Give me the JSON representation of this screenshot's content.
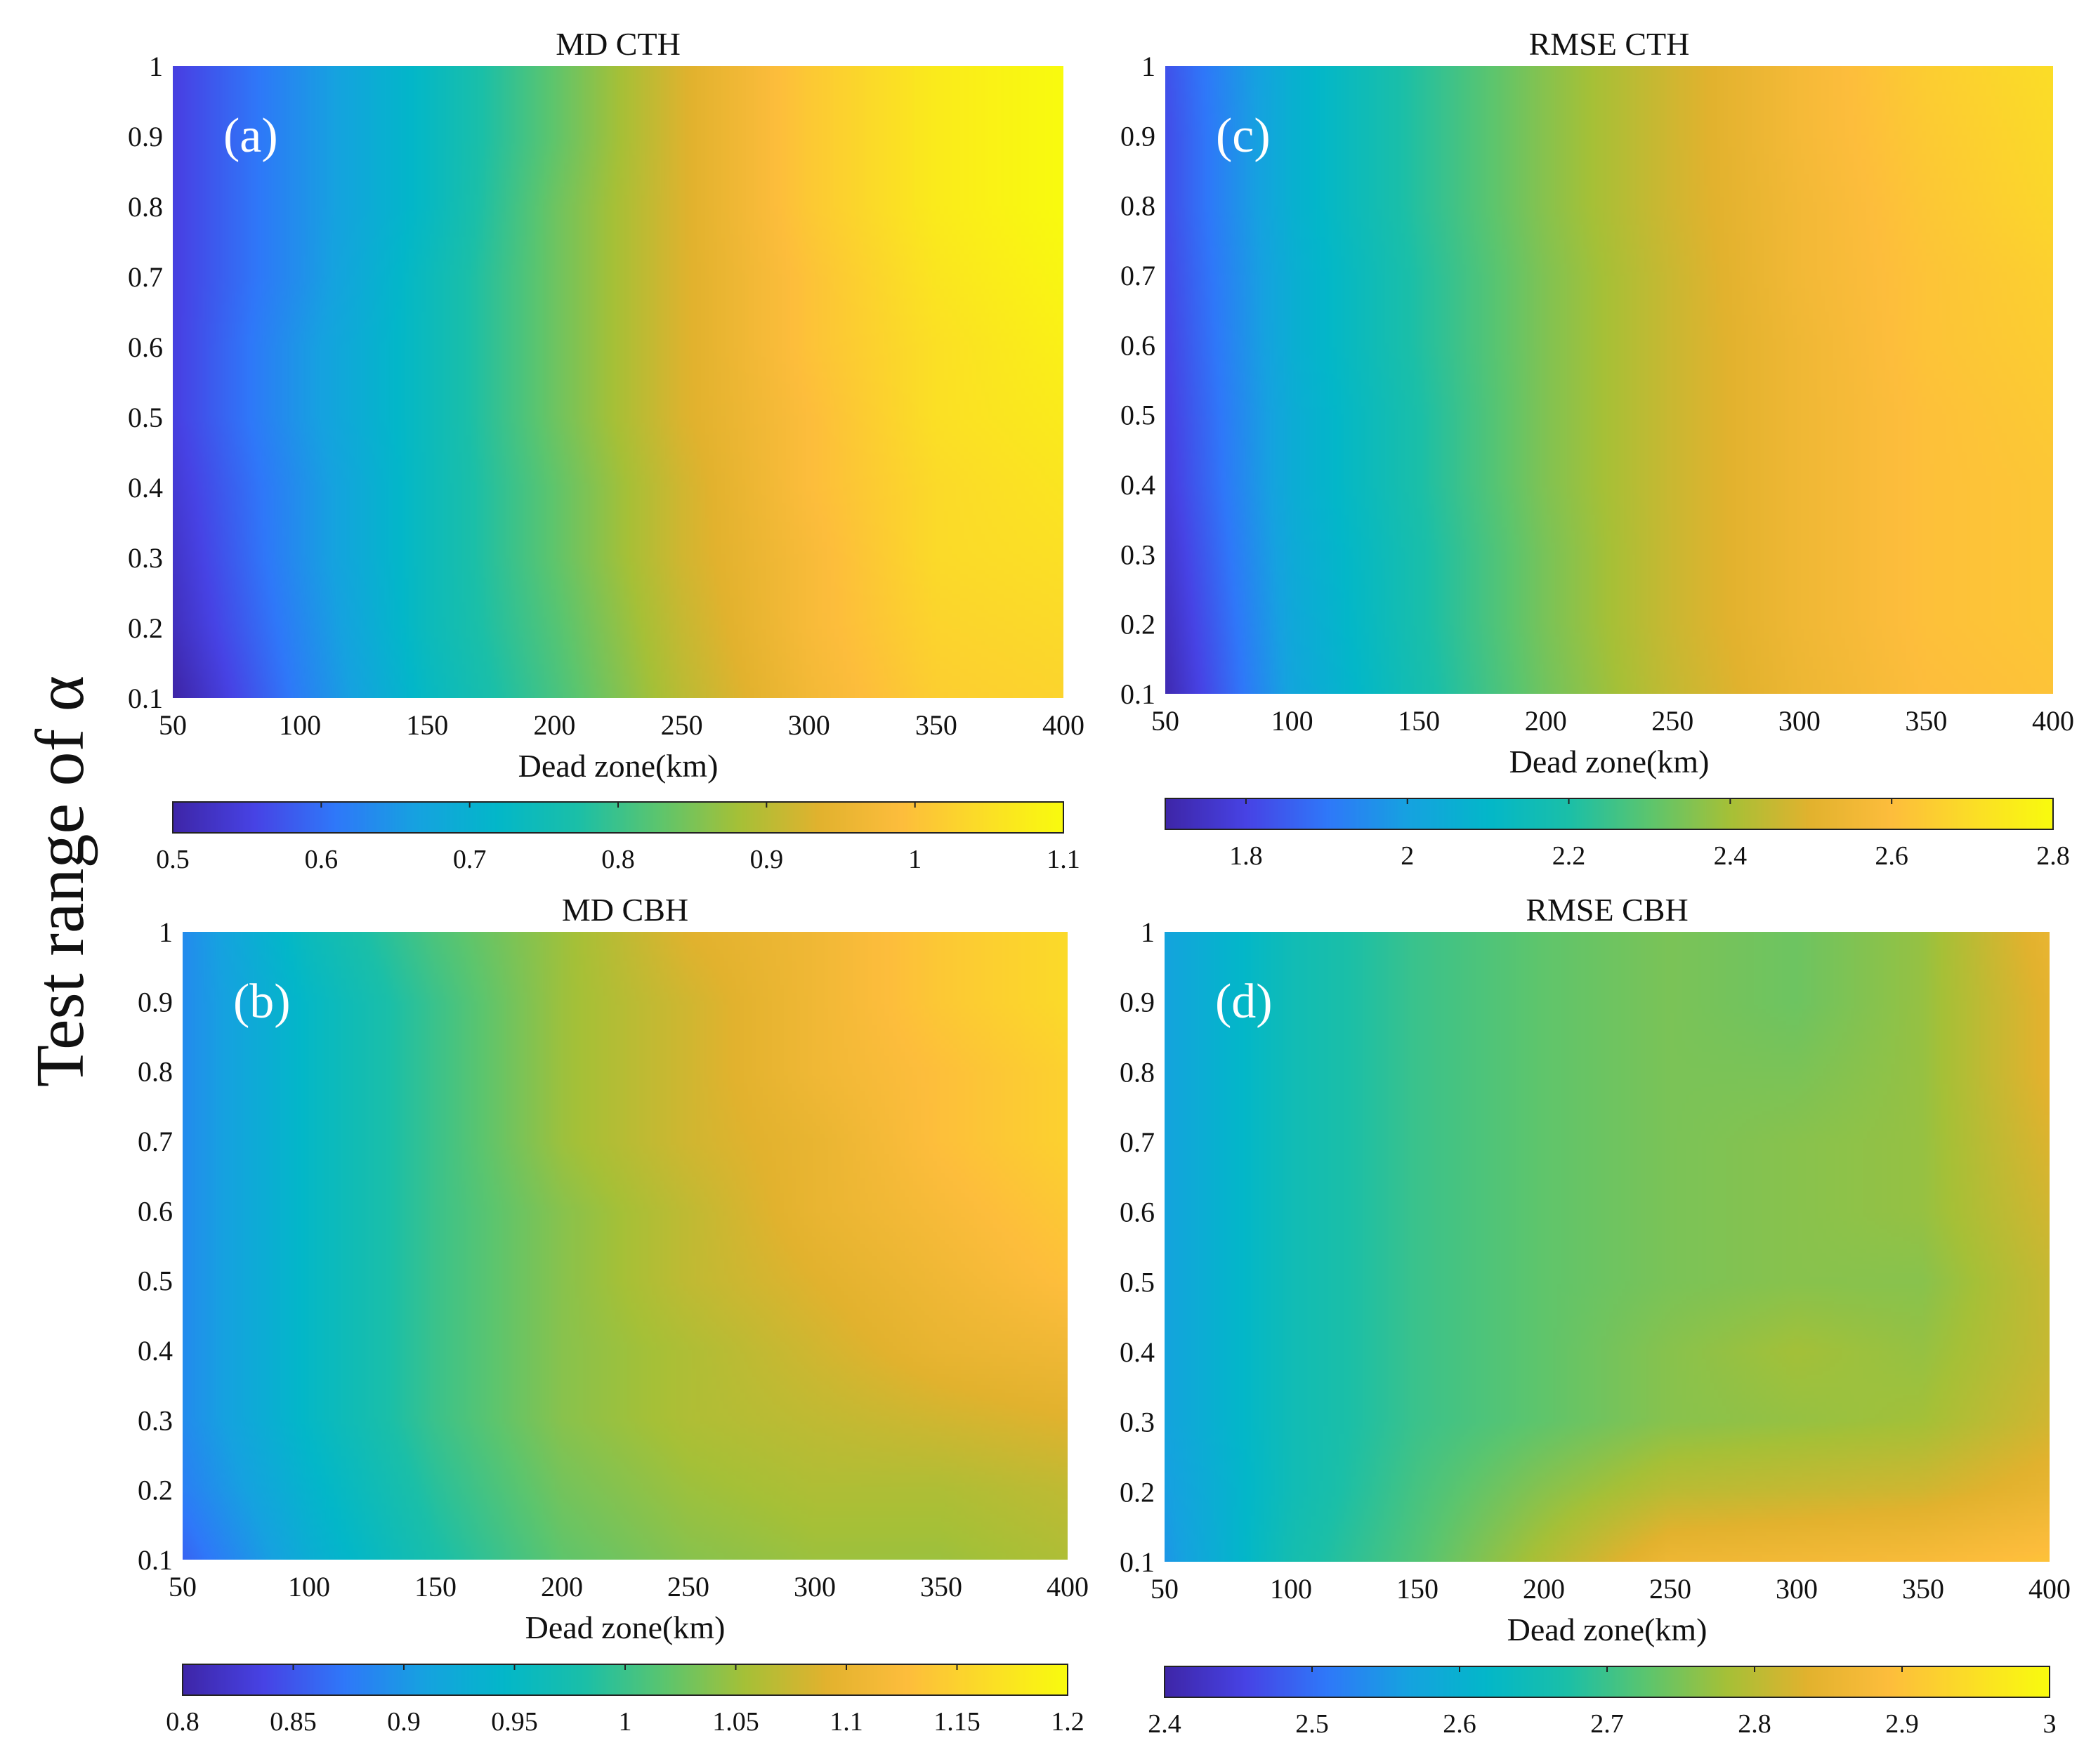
{
  "figure": {
    "y_axis_label": "Test range of α"
  },
  "colormap": [
    "#3e26a8",
    "#4743e5",
    "#2f78f9",
    "#16a2e0",
    "#03b7c9",
    "#1bbfa8",
    "#5cc56e",
    "#a6c037",
    "#e2b22e",
    "#fdbd3c",
    "#fbdd27",
    "#f9fb0e"
  ],
  "chart_data": [
    {
      "id": "a",
      "panel_label": "(a)",
      "type": "heatmap",
      "title": "MD CTH",
      "xlabel": "Dead zone(km)",
      "ylabel": "Test range of α",
      "x": [
        50,
        100,
        150,
        200,
        250,
        300,
        350,
        400
      ],
      "y": [
        0.1,
        0.2,
        0.3,
        0.4,
        0.5,
        0.6,
        0.7,
        0.8,
        0.9,
        1
      ],
      "x_ticks": [
        "50",
        "100",
        "150",
        "200",
        "250",
        "300",
        "350",
        "400"
      ],
      "y_ticks": [
        "0.1",
        "0.2",
        "0.3",
        "0.4",
        "0.5",
        "0.6",
        "0.7",
        "0.8",
        "0.9",
        "1"
      ],
      "xlim": [
        50,
        400
      ],
      "ylim": [
        0.1,
        1
      ],
      "clim": [
        0.5,
        1.1
      ],
      "colorbar_ticks": [
        "0.5",
        "0.6",
        "0.7",
        "0.8",
        "0.9",
        "1",
        "1.1"
      ],
      "colorbar_tick_values": [
        0.5,
        0.6,
        0.7,
        0.8,
        0.9,
        1.0,
        1.1
      ],
      "z": [
        [
          0.5,
          0.62,
          0.73,
          0.81,
          0.9,
          0.97,
          1.02,
          1.03
        ],
        [
          0.52,
          0.63,
          0.74,
          0.82,
          0.91,
          0.98,
          1.03,
          1.04
        ],
        [
          0.53,
          0.64,
          0.74,
          0.83,
          0.92,
          0.98,
          1.04,
          1.05
        ],
        [
          0.54,
          0.64,
          0.74,
          0.83,
          0.92,
          0.99,
          1.04,
          1.06
        ],
        [
          0.55,
          0.65,
          0.74,
          0.84,
          0.93,
          0.99,
          1.05,
          1.07
        ],
        [
          0.55,
          0.65,
          0.74,
          0.84,
          0.93,
          1.0,
          1.05,
          1.08
        ],
        [
          0.55,
          0.64,
          0.74,
          0.84,
          0.93,
          1.0,
          1.06,
          1.09
        ],
        [
          0.55,
          0.64,
          0.73,
          0.84,
          0.93,
          1.01,
          1.07,
          1.1
        ],
        [
          0.55,
          0.64,
          0.73,
          0.83,
          0.93,
          1.01,
          1.07,
          1.1
        ],
        [
          0.55,
          0.64,
          0.73,
          0.83,
          0.93,
          1.01,
          1.07,
          1.1
        ]
      ]
    },
    {
      "id": "c",
      "panel_label": "(c)",
      "type": "heatmap",
      "title": "RMSE CTH",
      "xlabel": "Dead zone(km)",
      "ylabel": "Test range of α",
      "x": [
        50,
        100,
        150,
        200,
        250,
        300,
        350,
        400
      ],
      "y": [
        0.1,
        0.2,
        0.3,
        0.4,
        0.5,
        0.6,
        0.7,
        0.8,
        0.9,
        1
      ],
      "x_ticks": [
        "50",
        "100",
        "150",
        "200",
        "250",
        "300",
        "350",
        "400"
      ],
      "y_ticks": [
        "0.1",
        "0.2",
        "0.3",
        "0.4",
        "0.5",
        "0.6",
        "0.7",
        "0.8",
        "0.9",
        "1"
      ],
      "xlim": [
        50,
        400
      ],
      "ylim": [
        0.1,
        1
      ],
      "clim": [
        1.7,
        2.8
      ],
      "colorbar_ticks": [
        "1.8",
        "2",
        "2.2",
        "2.4",
        "2.6",
        "2.8"
      ],
      "colorbar_tick_values": [
        1.8,
        2.0,
        2.2,
        2.4,
        2.6,
        2.8
      ],
      "z": [
        [
          1.72,
          2.02,
          2.18,
          2.33,
          2.45,
          2.54,
          2.6,
          2.62
        ],
        [
          1.74,
          2.03,
          2.19,
          2.34,
          2.46,
          2.55,
          2.61,
          2.63
        ],
        [
          1.76,
          2.04,
          2.19,
          2.34,
          2.46,
          2.55,
          2.61,
          2.63
        ],
        [
          1.78,
          2.05,
          2.2,
          2.35,
          2.46,
          2.55,
          2.61,
          2.63
        ],
        [
          1.79,
          2.05,
          2.2,
          2.35,
          2.46,
          2.55,
          2.61,
          2.64
        ],
        [
          1.8,
          2.06,
          2.21,
          2.35,
          2.46,
          2.55,
          2.62,
          2.65
        ],
        [
          1.81,
          2.06,
          2.21,
          2.35,
          2.46,
          2.56,
          2.62,
          2.66
        ],
        [
          1.82,
          2.07,
          2.22,
          2.36,
          2.47,
          2.56,
          2.63,
          2.68
        ],
        [
          1.82,
          2.07,
          2.22,
          2.36,
          2.47,
          2.57,
          2.64,
          2.69
        ],
        [
          1.83,
          2.07,
          2.22,
          2.36,
          2.47,
          2.57,
          2.65,
          2.7
        ]
      ]
    },
    {
      "id": "b",
      "panel_label": "(b)",
      "type": "heatmap",
      "title": "MD CBH",
      "xlabel": "Dead zone(km)",
      "ylabel": "Test range of α",
      "x": [
        50,
        100,
        150,
        200,
        250,
        300,
        350,
        400
      ],
      "y": [
        0.1,
        0.2,
        0.3,
        0.4,
        0.5,
        0.6,
        0.7,
        0.8,
        0.9,
        1
      ],
      "x_ticks": [
        "50",
        "100",
        "150",
        "200",
        "250",
        "300",
        "350",
        "400"
      ],
      "y_ticks": [
        "0.1",
        "0.2",
        "0.3",
        "0.4",
        "0.5",
        "0.6",
        "0.7",
        "0.8",
        "0.9",
        "1"
      ],
      "xlim": [
        50,
        400
      ],
      "ylim": [
        0.1,
        1
      ],
      "clim": [
        0.8,
        1.2
      ],
      "colorbar_ticks": [
        "0.8",
        "0.85",
        "0.9",
        "0.95",
        "1",
        "1.05",
        "1.1",
        "1.15",
        "1.2"
      ],
      "colorbar_tick_values": [
        0.8,
        0.85,
        0.9,
        0.95,
        1.0,
        1.05,
        1.1,
        1.15,
        1.2
      ],
      "z": [
        [
          0.86,
          0.93,
          0.98,
          1.02,
          1.04,
          1.05,
          1.05,
          1.06
        ],
        [
          0.88,
          0.94,
          0.99,
          1.03,
          1.05,
          1.06,
          1.06,
          1.07
        ],
        [
          0.89,
          0.95,
          1.0,
          1.04,
          1.06,
          1.07,
          1.08,
          1.09
        ],
        [
          0.89,
          0.95,
          1.0,
          1.04,
          1.06,
          1.08,
          1.1,
          1.11
        ],
        [
          0.89,
          0.95,
          1.0,
          1.04,
          1.07,
          1.09,
          1.11,
          1.13
        ],
        [
          0.89,
          0.95,
          1.0,
          1.04,
          1.07,
          1.1,
          1.12,
          1.14
        ],
        [
          0.89,
          0.95,
          1.0,
          1.05,
          1.08,
          1.1,
          1.13,
          1.15
        ],
        [
          0.89,
          0.95,
          1.0,
          1.05,
          1.08,
          1.11,
          1.13,
          1.15
        ],
        [
          0.89,
          0.95,
          1.0,
          1.05,
          1.08,
          1.11,
          1.14,
          1.16
        ],
        [
          0.89,
          0.96,
          1.01,
          1.05,
          1.09,
          1.11,
          1.14,
          1.16
        ]
      ]
    },
    {
      "id": "d",
      "panel_label": "(d)",
      "type": "heatmap",
      "title": "RMSE CBH",
      "xlabel": "Dead zone(km)",
      "ylabel": "Test range of α",
      "x": [
        50,
        100,
        150,
        200,
        250,
        300,
        350,
        400
      ],
      "y": [
        0.1,
        0.2,
        0.3,
        0.4,
        0.5,
        0.6,
        0.7,
        0.8,
        0.9,
        1
      ],
      "x_ticks": [
        "50",
        "100",
        "150",
        "200",
        "250",
        "300",
        "350",
        "400"
      ],
      "y_ticks": [
        "0.1",
        "0.2",
        "0.3",
        "0.4",
        "0.5",
        "0.6",
        "0.7",
        "0.8",
        "0.9",
        "1"
      ],
      "xlim": [
        50,
        400
      ],
      "ylim": [
        0.1,
        1
      ],
      "clim": [
        2.4,
        3
      ],
      "colorbar_ticks": [
        "2.4",
        "2.5",
        "2.6",
        "2.7",
        "2.8",
        "2.9",
        "3"
      ],
      "colorbar_tick_values": [
        2.4,
        2.5,
        2.6,
        2.7,
        2.8,
        2.9,
        3.0
      ],
      "z": [
        [
          2.55,
          2.66,
          2.72,
          2.79,
          2.86,
          2.87,
          2.88,
          2.9
        ],
        [
          2.56,
          2.65,
          2.71,
          2.76,
          2.8,
          2.81,
          2.82,
          2.85
        ],
        [
          2.57,
          2.65,
          2.7,
          2.73,
          2.76,
          2.77,
          2.78,
          2.82
        ],
        [
          2.57,
          2.65,
          2.7,
          2.73,
          2.76,
          2.78,
          2.77,
          2.81
        ],
        [
          2.57,
          2.65,
          2.7,
          2.73,
          2.75,
          2.76,
          2.76,
          2.81
        ],
        [
          2.57,
          2.65,
          2.7,
          2.73,
          2.75,
          2.76,
          2.77,
          2.82
        ],
        [
          2.57,
          2.65,
          2.7,
          2.73,
          2.75,
          2.76,
          2.77,
          2.83
        ],
        [
          2.57,
          2.65,
          2.7,
          2.73,
          2.75,
          2.75,
          2.77,
          2.84
        ],
        [
          2.57,
          2.65,
          2.7,
          2.73,
          2.75,
          2.74,
          2.77,
          2.84
        ],
        [
          2.57,
          2.65,
          2.7,
          2.73,
          2.75,
          2.74,
          2.77,
          2.85
        ]
      ]
    }
  ]
}
